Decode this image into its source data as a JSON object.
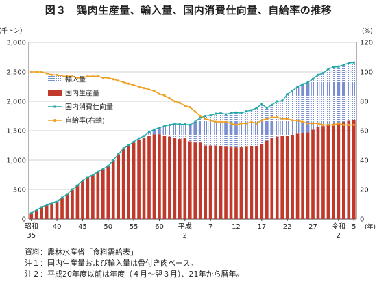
{
  "title": "図３　鶏肉生産量、輸入量、国内消費仕向量、自給率の推移",
  "notes": [
    "資料：農林水産省「食料需給表」",
    "注１：国内生産量および輸入量は骨付き肉ベース。",
    "注２：平成20年度以前は年度（４月～翌３月）、21年から暦年。"
  ],
  "colors": {
    "production": "#c0392b",
    "imports": "#7a8fd0",
    "consumption": "#23a8a8",
    "selfsufficiency": "#f0a020",
    "grid": "#d0d0d0"
  },
  "chart_data": {
    "type": "bar",
    "stacked": true,
    "left_unit": "（千トン）",
    "right_unit": "(%)",
    "x_unit": "(年)",
    "ylim": [
      0,
      3000
    ],
    "y2lim": [
      0,
      120
    ],
    "y_ticks": [
      "0",
      "500",
      "1,000",
      "1,500",
      "2,000",
      "2,500",
      "3,000"
    ],
    "y2_ticks": [
      "0",
      "20",
      "40",
      "60",
      "80",
      "100",
      "120"
    ],
    "grid": true,
    "legend_position": "left-middle",
    "x_tick_labels": [
      {
        "index": 0,
        "line1": "昭和",
        "line2": "35"
      },
      {
        "index": 5,
        "line1": "40",
        "line2": ""
      },
      {
        "index": 10,
        "line1": "45",
        "line2": ""
      },
      {
        "index": 15,
        "line1": "50",
        "line2": ""
      },
      {
        "index": 20,
        "line1": "55",
        "line2": ""
      },
      {
        "index": 25,
        "line1": "60",
        "line2": ""
      },
      {
        "index": 30,
        "line1": "平成",
        "line2": "2"
      },
      {
        "index": 35,
        "line1": "7",
        "line2": ""
      },
      {
        "index": 40,
        "line1": "12",
        "line2": ""
      },
      {
        "index": 45,
        "line1": "17",
        "line2": ""
      },
      {
        "index": 50,
        "line1": "22",
        "line2": ""
      },
      {
        "index": 55,
        "line1": "27",
        "line2": ""
      },
      {
        "index": 60,
        "line1": "令和",
        "line2": "2"
      },
      {
        "index": 63,
        "line1": "5",
        "line2": ""
      }
    ],
    "series": [
      {
        "name": "輸入量",
        "kind": "bar-stack-top",
        "values": [
          0,
          0,
          0,
          0,
          0,
          0,
          0,
          0,
          0,
          0,
          0,
          0,
          0,
          0,
          0,
          0,
          0,
          0,
          0,
          0,
          10,
          20,
          30,
          60,
          80,
          110,
          160,
          200,
          240,
          250,
          230,
          280,
          350,
          420,
          500,
          510,
          540,
          560,
          550,
          580,
          590,
          580,
          600,
          610,
          650,
          680,
          560,
          560,
          600,
          600,
          700,
          750,
          800,
          830,
          850,
          860,
          890,
          900,
          950,
          960,
          950,
          970,
          980,
          980
        ]
      },
      {
        "name": "国内生産量",
        "kind": "bar",
        "values": [
          100,
          150,
          200,
          240,
          270,
          300,
          360,
          420,
          500,
          570,
          650,
          710,
          750,
          800,
          850,
          900,
          1000,
          1100,
          1200,
          1250,
          1300,
          1350,
          1380,
          1420,
          1440,
          1440,
          1420,
          1400,
          1380,
          1360,
          1380,
          1320,
          1300,
          1300,
          1250,
          1250,
          1250,
          1240,
          1230,
          1220,
          1220,
          1220,
          1230,
          1240,
          1240,
          1270,
          1330,
          1380,
          1400,
          1410,
          1420,
          1430,
          1450,
          1460,
          1470,
          1520,
          1560,
          1580,
          1600,
          1620,
          1640,
          1650,
          1670,
          1680
        ]
      },
      {
        "name": "国内消費仕向量",
        "kind": "line",
        "values": [
          100,
          150,
          200,
          240,
          270,
          300,
          360,
          420,
          500,
          570,
          650,
          710,
          750,
          800,
          850,
          900,
          1000,
          1100,
          1200,
          1250,
          1310,
          1370,
          1410,
          1480,
          1520,
          1550,
          1580,
          1600,
          1620,
          1610,
          1610,
          1600,
          1650,
          1720,
          1750,
          1760,
          1790,
          1800,
          1780,
          1800,
          1810,
          1800,
          1830,
          1850,
          1890,
          1950,
          1890,
          1940,
          2000,
          2010,
          2120,
          2180,
          2250,
          2290,
          2320,
          2380,
          2450,
          2480,
          2550,
          2580,
          2590,
          2620,
          2650,
          2660
        ]
      },
      {
        "name": "自給率(右軸)",
        "kind": "line-right",
        "values": [
          100,
          100,
          100,
          99,
          98,
          98,
          97,
          97,
          97,
          96,
          96,
          97,
          97,
          97,
          96,
          96,
          95,
          94,
          93,
          92,
          91,
          90,
          89,
          88,
          87,
          85,
          84,
          82,
          80,
          79,
          77,
          76,
          73,
          70,
          68,
          67,
          66,
          66,
          66,
          65,
          64,
          65,
          65,
          66,
          65,
          67,
          68,
          69,
          69,
          68,
          68,
          67,
          67,
          66,
          65,
          65,
          65,
          64,
          64,
          64,
          65,
          64,
          64,
          64
        ]
      }
    ]
  }
}
